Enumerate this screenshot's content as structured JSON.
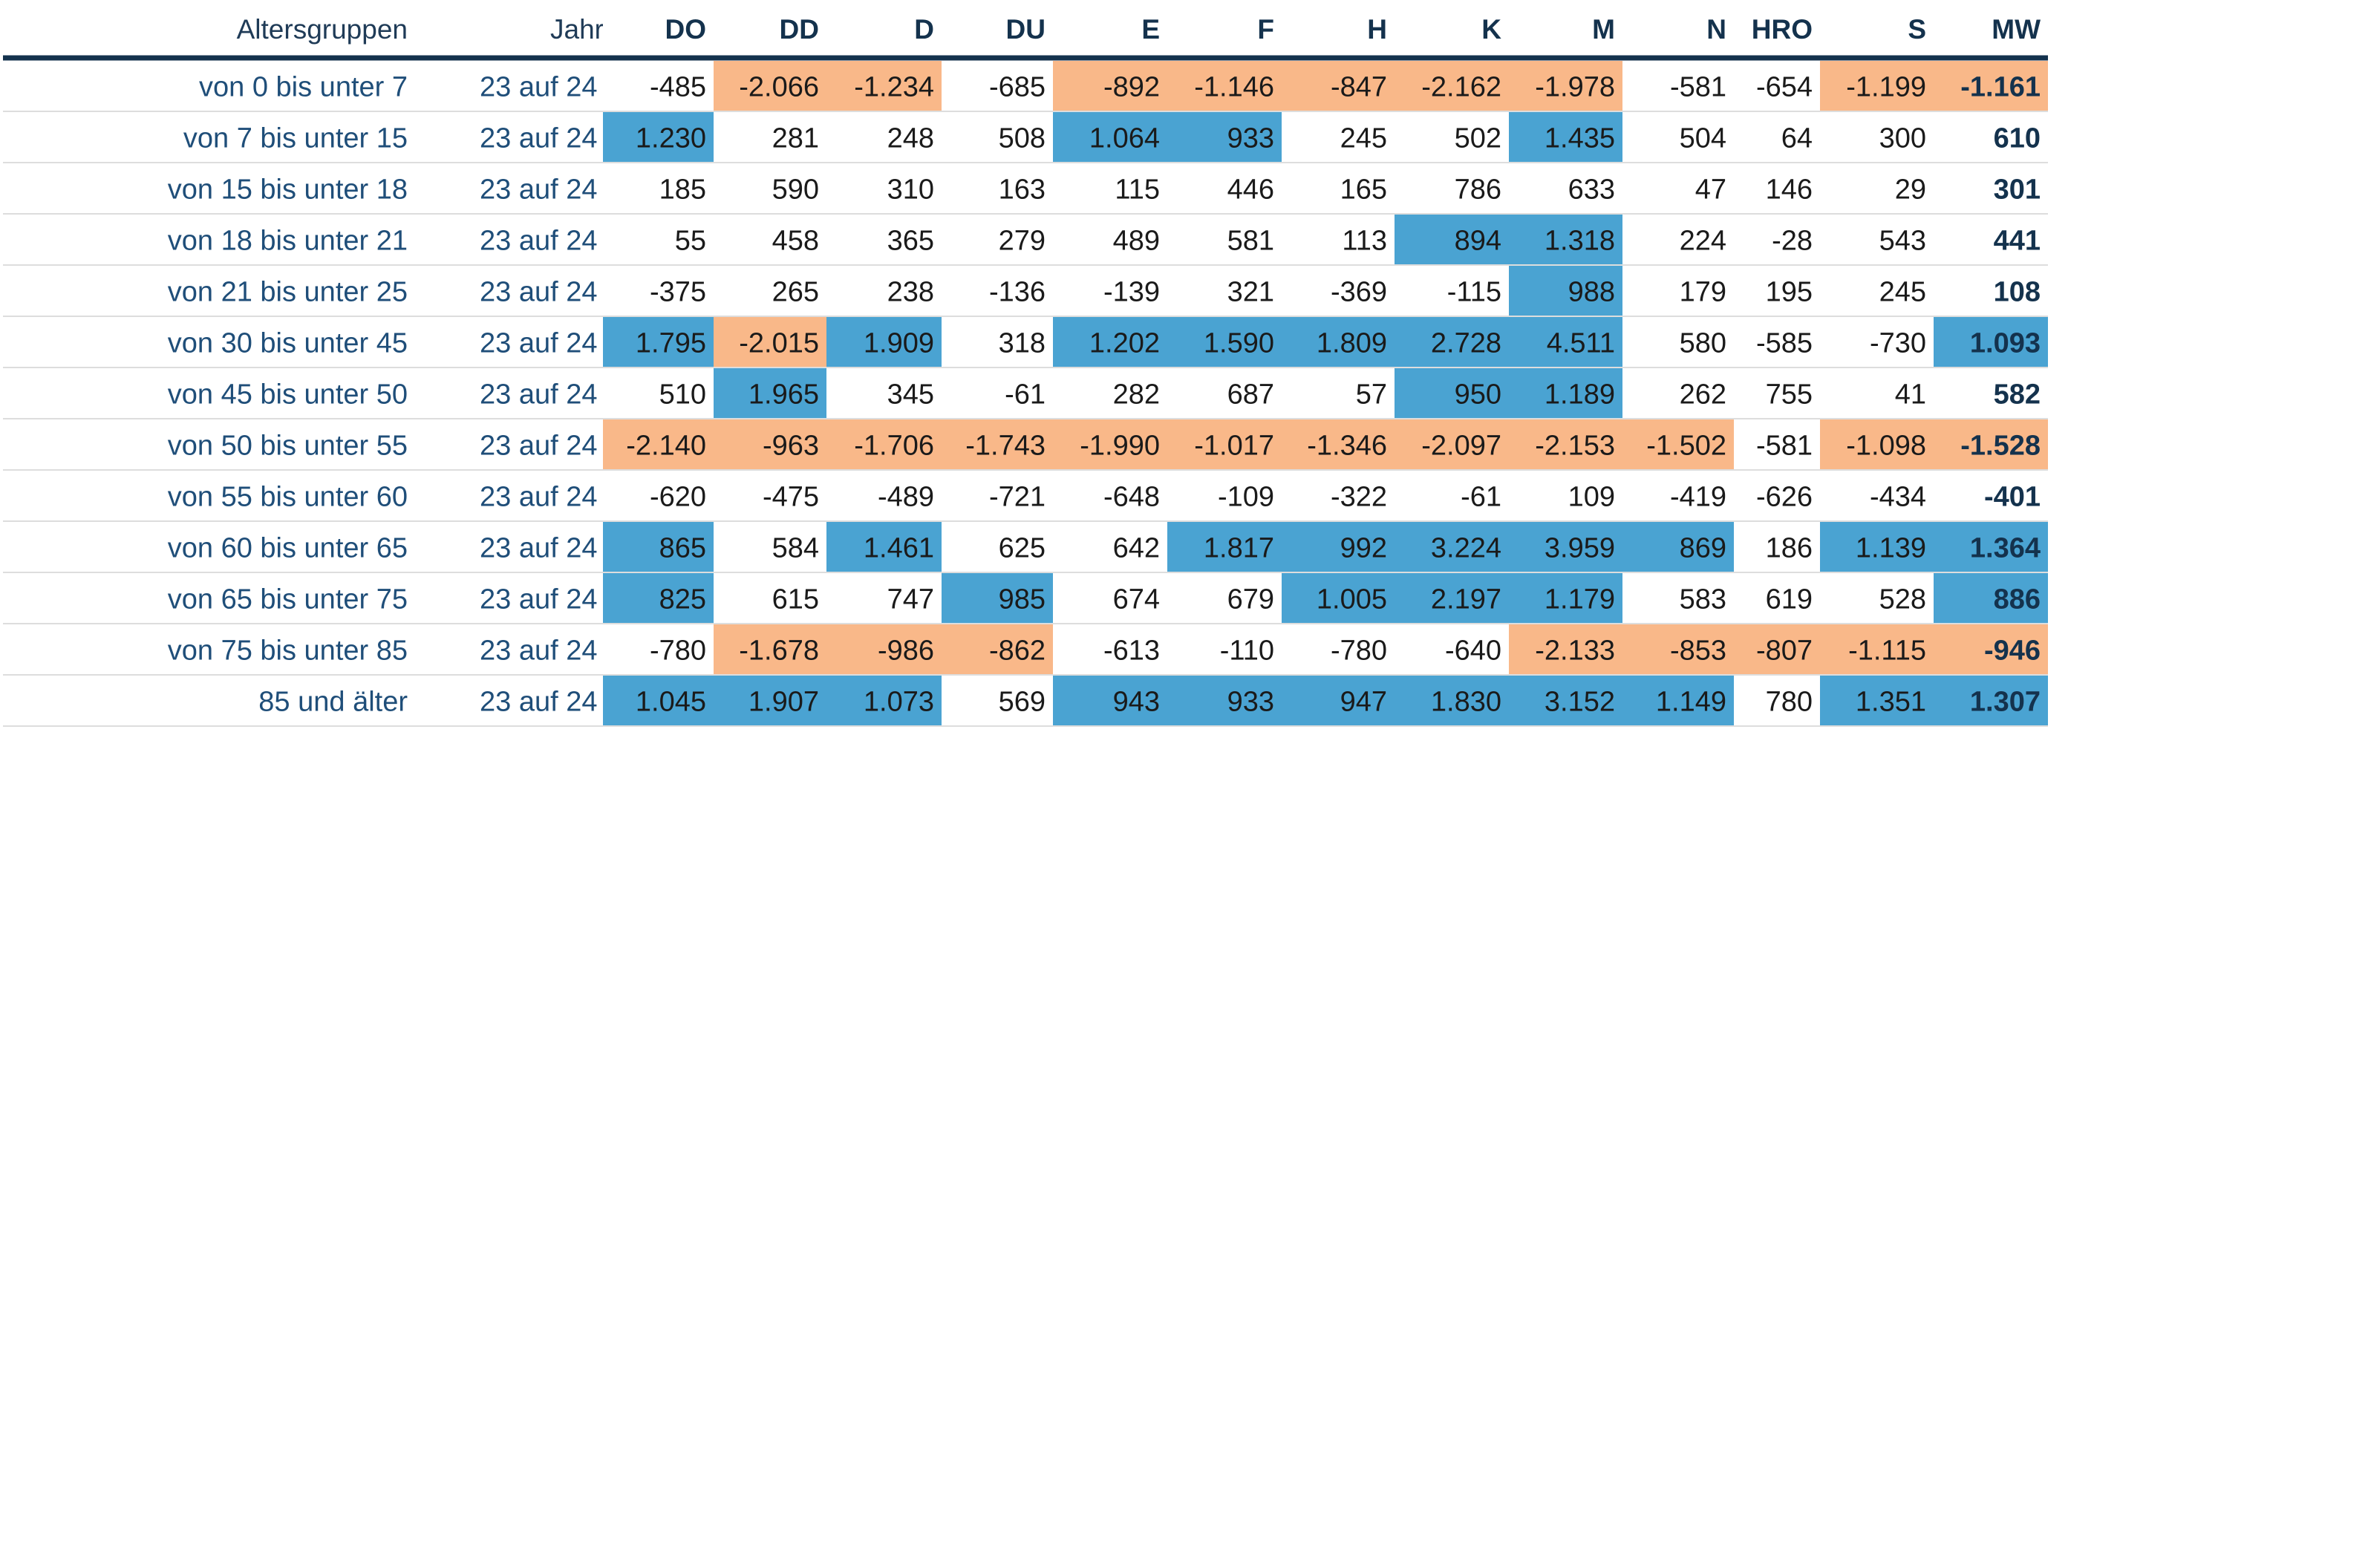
{
  "chart_data": {
    "type": "table",
    "columns": [
      "Altersgruppen",
      "Jahr",
      "DO",
      "DD",
      "D",
      "DU",
      "E",
      "F",
      "H",
      "K",
      "M",
      "N",
      "HRO",
      "S",
      "MW"
    ],
    "rows": [
      {
        "label": "von 0 bis unter 7",
        "year": "23 auf 24",
        "values": [
          -485,
          -2066,
          -1234,
          -685,
          -892,
          -1146,
          -847,
          -2162,
          -1978,
          -581,
          -654,
          -1199,
          -1161
        ],
        "display": [
          "-485",
          "-2.066",
          "-1.234",
          "-685",
          "-892",
          "-1.146",
          "-847",
          "-2.162",
          "-1.978",
          "-581",
          "-654",
          "-1.199",
          "-1.161"
        ],
        "highlight": [
          "",
          "neg",
          "neg",
          "",
          "neg",
          "neg",
          "neg",
          "neg",
          "neg",
          "",
          "",
          "neg",
          "neg"
        ]
      },
      {
        "label": "von 7 bis unter 15",
        "year": "23 auf 24",
        "values": [
          1230,
          281,
          248,
          508,
          1064,
          933,
          245,
          502,
          1435,
          504,
          64,
          300,
          610
        ],
        "display": [
          "1.230",
          "281",
          "248",
          "508",
          "1.064",
          "933",
          "245",
          "502",
          "1.435",
          "504",
          "64",
          "300",
          "610"
        ],
        "highlight": [
          "pos",
          "",
          "",
          "",
          "pos",
          "pos",
          "",
          "",
          "pos",
          "",
          "",
          "",
          ""
        ]
      },
      {
        "label": "von 15 bis unter 18",
        "year": "23 auf 24",
        "values": [
          185,
          590,
          310,
          163,
          115,
          446,
          165,
          786,
          633,
          47,
          146,
          29,
          301
        ],
        "display": [
          "185",
          "590",
          "310",
          "163",
          "115",
          "446",
          "165",
          "786",
          "633",
          "47",
          "146",
          "29",
          "301"
        ],
        "highlight": [
          "",
          "",
          "",
          "",
          "",
          "",
          "",
          "",
          "",
          "",
          "",
          "",
          ""
        ]
      },
      {
        "label": "von 18 bis unter 21",
        "year": "23 auf 24",
        "values": [
          55,
          458,
          365,
          279,
          489,
          581,
          113,
          894,
          1318,
          224,
          -28,
          543,
          441
        ],
        "display": [
          "55",
          "458",
          "365",
          "279",
          "489",
          "581",
          "113",
          "894",
          "1.318",
          "224",
          "-28",
          "543",
          "441"
        ],
        "highlight": [
          "",
          "",
          "",
          "",
          "",
          "",
          "",
          "pos",
          "pos",
          "",
          "",
          "",
          ""
        ]
      },
      {
        "label": "von 21 bis unter 25",
        "year": "23 auf 24",
        "values": [
          -375,
          265,
          238,
          -136,
          -139,
          321,
          -369,
          -115,
          988,
          179,
          195,
          245,
          108
        ],
        "display": [
          "-375",
          "265",
          "238",
          "-136",
          "-139",
          "321",
          "-369",
          "-115",
          "988",
          "179",
          "195",
          "245",
          "108"
        ],
        "highlight": [
          "",
          "",
          "",
          "",
          "",
          "",
          "",
          "",
          "pos",
          "",
          "",
          "",
          ""
        ]
      },
      {
        "label": "von 30 bis unter 45",
        "year": "23 auf 24",
        "values": [
          1795,
          -2015,
          1909,
          318,
          1202,
          1590,
          1809,
          2728,
          4511,
          580,
          -585,
          -730,
          1093
        ],
        "display": [
          "1.795",
          "-2.015",
          "1.909",
          "318",
          "1.202",
          "1.590",
          "1.809",
          "2.728",
          "4.511",
          "580",
          "-585",
          "-730",
          "1.093"
        ],
        "highlight": [
          "pos",
          "neg",
          "pos",
          "",
          "pos",
          "pos",
          "pos",
          "pos",
          "pos",
          "",
          "",
          "",
          "pos"
        ]
      },
      {
        "label": "von 45 bis unter 50",
        "year": "23 auf 24",
        "values": [
          510,
          1965,
          345,
          -61,
          282,
          687,
          57,
          950,
          1189,
          262,
          755,
          41,
          582
        ],
        "display": [
          "510",
          "1.965",
          "345",
          "-61",
          "282",
          "687",
          "57",
          "950",
          "1.189",
          "262",
          "755",
          "41",
          "582"
        ],
        "highlight": [
          "",
          "pos",
          "",
          "",
          "",
          "",
          "",
          "pos",
          "pos",
          "",
          "",
          "",
          ""
        ]
      },
      {
        "label": "von 50 bis unter 55",
        "year": "23 auf 24",
        "values": [
          -2140,
          -963,
          -1706,
          -1743,
          -1990,
          -1017,
          -1346,
          -2097,
          -2153,
          -1502,
          -581,
          -1098,
          -1528
        ],
        "display": [
          "-2.140",
          "-963",
          "-1.706",
          "-1.743",
          "-1.990",
          "-1.017",
          "-1.346",
          "-2.097",
          "-2.153",
          "-1.502",
          "-581",
          "-1.098",
          "-1.528"
        ],
        "highlight": [
          "neg",
          "neg",
          "neg",
          "neg",
          "neg",
          "neg",
          "neg",
          "neg",
          "neg",
          "neg",
          "",
          "neg",
          "neg"
        ]
      },
      {
        "label": "von 55 bis unter 60",
        "year": "23 auf 24",
        "values": [
          -620,
          -475,
          -489,
          -721,
          -648,
          -109,
          -322,
          -61,
          109,
          -419,
          -626,
          -434,
          -401
        ],
        "display": [
          "-620",
          "-475",
          "-489",
          "-721",
          "-648",
          "-109",
          "-322",
          "-61",
          "109",
          "-419",
          "-626",
          "-434",
          "-401"
        ],
        "highlight": [
          "",
          "",
          "",
          "",
          "",
          "",
          "",
          "",
          "",
          "",
          "",
          "",
          ""
        ]
      },
      {
        "label": "von 60 bis unter 65",
        "year": "23 auf 24",
        "values": [
          865,
          584,
          1461,
          625,
          642,
          1817,
          992,
          3224,
          3959,
          869,
          186,
          1139,
          1364
        ],
        "display": [
          "865",
          "584",
          "1.461",
          "625",
          "642",
          "1.817",
          "992",
          "3.224",
          "3.959",
          "869",
          "186",
          "1.139",
          "1.364"
        ],
        "highlight": [
          "pos",
          "",
          "pos",
          "",
          "",
          "pos",
          "pos",
          "pos",
          "pos",
          "pos",
          "",
          "pos",
          "pos"
        ]
      },
      {
        "label": "von 65 bis unter 75",
        "year": "23 auf 24",
        "values": [
          825,
          615,
          747,
          985,
          674,
          679,
          1005,
          2197,
          1179,
          583,
          619,
          528,
          886
        ],
        "display": [
          "825",
          "615",
          "747",
          "985",
          "674",
          "679",
          "1.005",
          "2.197",
          "1.179",
          "583",
          "619",
          "528",
          "886"
        ],
        "highlight": [
          "pos",
          "",
          "",
          "pos",
          "",
          "",
          "pos",
          "pos",
          "pos",
          "",
          "",
          "",
          "pos"
        ]
      },
      {
        "label": "von 75 bis unter 85",
        "year": "23 auf 24",
        "values": [
          -780,
          -1678,
          -986,
          -862,
          -613,
          -110,
          -780,
          -640,
          -2133,
          -853,
          -807,
          -1115,
          -946
        ],
        "display": [
          "-780",
          "-1.678",
          "-986",
          "-862",
          "-613",
          "-110",
          "-780",
          "-640",
          "-2.133",
          "-853",
          "-807",
          "-1.115",
          "-946"
        ],
        "highlight": [
          "",
          "neg",
          "neg",
          "neg",
          "",
          "",
          "",
          "",
          "neg",
          "neg",
          "neg",
          "neg",
          "neg"
        ]
      },
      {
        "label": "85 und älter",
        "year": "23 auf 24",
        "values": [
          1045,
          1907,
          1073,
          569,
          943,
          933,
          947,
          1830,
          3152,
          1149,
          780,
          1351,
          1307
        ],
        "display": [
          "1.045",
          "1.907",
          "1.073",
          "569",
          "943",
          "933",
          "947",
          "1.830",
          "3.152",
          "1.149",
          "780",
          "1.351",
          "1.307"
        ],
        "highlight": [
          "pos",
          "pos",
          "pos",
          "",
          "pos",
          "pos",
          "pos",
          "pos",
          "pos",
          "pos",
          "",
          "pos",
          "pos"
        ]
      }
    ],
    "colors": {
      "positive": "#4aa3d2",
      "negative": "#f9b889",
      "header_rule": "#14324d",
      "row_rule": "#dddddd",
      "label_text": "#1f4e79",
      "value_text": "#1a1a1a",
      "mw_text": "#14324d"
    }
  }
}
